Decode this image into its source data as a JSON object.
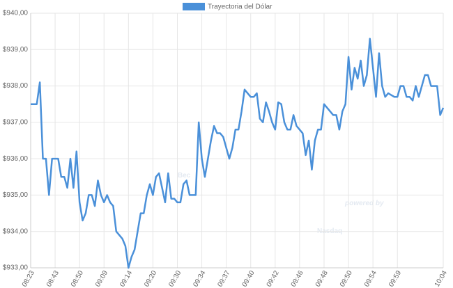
{
  "chart_data": {
    "type": "line",
    "legend": "Trayectoria del Dólar",
    "watermark": {
      "logo": "Bec",
      "tagline": "powered by",
      "brand": "Nasdaq"
    },
    "categories": [
      "08:23",
      null,
      null,
      null,
      null,
      null,
      null,
      null,
      "08:43",
      null,
      null,
      null,
      null,
      null,
      null,
      null,
      "08:50",
      null,
      null,
      null,
      null,
      null,
      null,
      null,
      "09:09",
      null,
      null,
      null,
      null,
      null,
      null,
      null,
      "09:14",
      null,
      null,
      null,
      null,
      null,
      null,
      null,
      "09:20",
      null,
      null,
      null,
      null,
      null,
      null,
      null,
      "09:30",
      null,
      null,
      null,
      null,
      null,
      null,
      null,
      "09:34",
      null,
      null,
      null,
      null,
      null,
      null,
      null,
      "09:37",
      null,
      null,
      null,
      null,
      null,
      null,
      null,
      "09:40",
      null,
      null,
      null,
      null,
      null,
      null,
      null,
      "09:42",
      null,
      null,
      null,
      null,
      null,
      null,
      null,
      "09:46",
      null,
      null,
      null,
      null,
      null,
      null,
      null,
      "09:48",
      null,
      null,
      null,
      null,
      null,
      null,
      null,
      "09:50",
      null,
      null,
      null,
      null,
      null,
      null,
      null,
      "09:54",
      null,
      null,
      null,
      null,
      null,
      null,
      null,
      "09:59",
      null,
      null,
      null,
      null,
      null,
      null,
      null,
      null,
      null,
      null,
      null,
      null,
      null,
      null,
      "10:04"
    ],
    "series": [
      {
        "name": "Trayectoria del Dólar",
        "color": "#4a90d9",
        "values": [
          937.5,
          937.5,
          937.5,
          938.1,
          936,
          936,
          935,
          936,
          936,
          936,
          935.5,
          935.5,
          935.2,
          936,
          935.2,
          936.2,
          934.8,
          934.3,
          934.5,
          935,
          935,
          934.7,
          935.4,
          935,
          934.8,
          935,
          934.8,
          934.7,
          934,
          933.9,
          933.8,
          933.6,
          933,
          933.3,
          933.5,
          934,
          934.5,
          934.5,
          935,
          935.3,
          935,
          935.5,
          935.6,
          935.2,
          934.8,
          935.6,
          934.9,
          934.9,
          934.8,
          934.8,
          935.3,
          935.4,
          935,
          935,
          935,
          937,
          936,
          935.5,
          936,
          936.5,
          936.9,
          936.7,
          936.7,
          936.6,
          936.3,
          936,
          936.3,
          936.8,
          936.8,
          937.3,
          937.9,
          937.8,
          937.7,
          937.7,
          937.8,
          937.1,
          937,
          937.55,
          937.3,
          937,
          936.8,
          937.55,
          937.5,
          937,
          936.8,
          936.8,
          937.2,
          936.9,
          936.8,
          936.7,
          936.1,
          936.5,
          935.7,
          936.5,
          936.8,
          936.8,
          937.5,
          937.4,
          937.3,
          937.2,
          937.2,
          936.8,
          937.3,
          937.5,
          938.8,
          937.9,
          938.5,
          938.2,
          938.7,
          938,
          938.3,
          939.3,
          938.5,
          937.7,
          938.9,
          938,
          937.7,
          937.8,
          937.75,
          937.7,
          937.7,
          938,
          938,
          937.7,
          937.7,
          937.6,
          938,
          937.7,
          938,
          938.3,
          938.3,
          938,
          938,
          938,
          937.2,
          937.4
        ]
      }
    ],
    "ylim": [
      933,
      940
    ],
    "yticks": [
      {
        "value": 933,
        "label": "$933,00"
      },
      {
        "value": 934,
        "label": "$934,00"
      },
      {
        "value": 935,
        "label": "$935,00"
      },
      {
        "value": 936,
        "label": "$936,00"
      },
      {
        "value": 937,
        "label": "$937,00"
      },
      {
        "value": 938,
        "label": "$938,00"
      },
      {
        "value": 939,
        "label": "$939,00"
      },
      {
        "value": 940,
        "label": "$940,00"
      }
    ],
    "grid": true
  }
}
